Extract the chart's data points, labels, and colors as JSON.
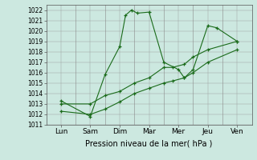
{
  "title": "",
  "xlabel": "Pression niveau de la mer( hPa )",
  "ylabel": "",
  "bg_color": "#cce8e0",
  "line_color": "#1a6b1a",
  "grid_color": "#aaaaaa",
  "ylim": [
    1011,
    1022.5
  ],
  "xlim": [
    0,
    7
  ],
  "xtick_positions": [
    0.5,
    1.5,
    2.5,
    3.5,
    4.5,
    5.5,
    6.5
  ],
  "xtick_labels": [
    "Lun",
    "Sam",
    "Dim",
    "Mar",
    "Mer",
    "Jeu",
    "Ven"
  ],
  "ytick_values": [
    1011,
    1012,
    1013,
    1014,
    1015,
    1016,
    1017,
    1018,
    1019,
    1020,
    1021,
    1022
  ],
  "series": [
    {
      "x": [
        0.5,
        1.5,
        2.0,
        2.5,
        2.7,
        2.9,
        3.1,
        3.5,
        4.0,
        4.5,
        4.7,
        5.0,
        5.5,
        5.8,
        6.5
      ],
      "y": [
        1013.3,
        1011.8,
        1015.8,
        1018.5,
        1021.5,
        1022.0,
        1021.7,
        1021.8,
        1017.0,
        1016.3,
        1015.5,
        1016.3,
        1020.5,
        1020.3,
        1019.0
      ]
    },
    {
      "x": [
        0.5,
        1.5,
        2.0,
        2.5,
        3.0,
        3.5,
        4.0,
        4.3,
        4.7,
        5.0,
        5.5,
        6.5
      ],
      "y": [
        1013.0,
        1013.0,
        1013.8,
        1014.2,
        1015.0,
        1015.5,
        1016.5,
        1016.5,
        1016.8,
        1017.5,
        1018.2,
        1019.0
      ]
    },
    {
      "x": [
        0.5,
        1.5,
        2.0,
        2.5,
        3.0,
        3.5,
        4.0,
        4.3,
        4.7,
        5.0,
        5.5,
        6.5
      ],
      "y": [
        1012.3,
        1012.0,
        1012.5,
        1013.2,
        1014.0,
        1014.5,
        1015.0,
        1015.2,
        1015.5,
        1016.0,
        1017.0,
        1018.2
      ]
    }
  ]
}
